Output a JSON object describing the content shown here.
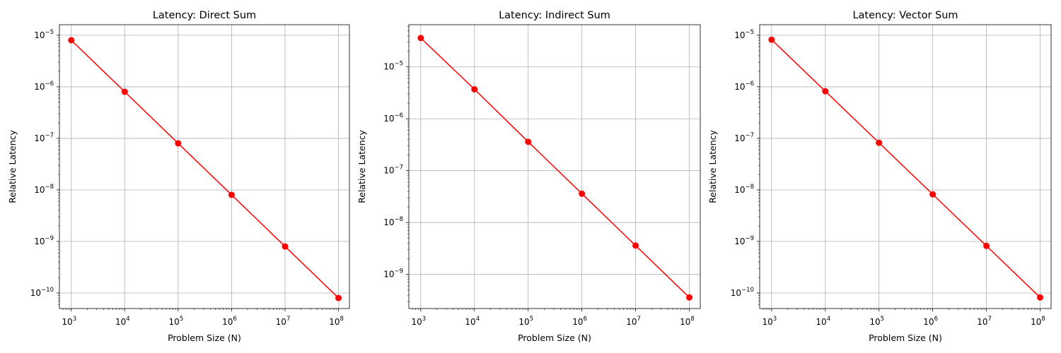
{
  "chart_data": [
    {
      "type": "line",
      "title": "Latency: Direct Sum",
      "xlabel": "Problem Size (N)",
      "ylabel": "Relative Latency",
      "x_scale": "log",
      "y_scale": "log",
      "grid": true,
      "xlim": [
        600,
        160000000
      ],
      "ylim": [
        5e-11,
        1.6e-05
      ],
      "x_ticks": [
        1000,
        10000,
        100000,
        1000000,
        10000000,
        100000000
      ],
      "y_ticks": [
        1e-10,
        1e-09,
        1e-08,
        1e-07,
        1e-06,
        1e-05
      ],
      "series": [
        {
          "color": "#ff0000",
          "marker": "circle",
          "x": [
            1000,
            10000,
            100000,
            1000000,
            10000000,
            100000000
          ],
          "y": [
            8e-06,
            8e-07,
            8e-08,
            8e-09,
            8e-10,
            8e-11
          ]
        }
      ]
    },
    {
      "type": "line",
      "title": "Latency: Indirect Sum",
      "xlabel": "Problem Size (N)",
      "ylabel": "Relative Latency",
      "x_scale": "log",
      "y_scale": "log",
      "grid": true,
      "xlim": [
        600,
        160000000
      ],
      "ylim": [
        2.2e-10,
        6.5e-05
      ],
      "x_ticks": [
        1000,
        10000,
        100000,
        1000000,
        10000000,
        100000000
      ],
      "y_ticks": [
        1e-09,
        1e-08,
        1e-07,
        1e-06,
        1e-05
      ],
      "series": [
        {
          "color": "#ff0000",
          "marker": "circle",
          "x": [
            1000,
            10000,
            100000,
            1000000,
            10000000,
            100000000
          ],
          "y": [
            3.6e-05,
            3.7e-06,
            3.6e-07,
            3.6e-08,
            3.6e-09,
            3.6e-10
          ]
        }
      ]
    },
    {
      "type": "line",
      "title": "Latency: Vector Sum",
      "xlabel": "Problem Size (N)",
      "ylabel": "Relative Latency",
      "x_scale": "log",
      "y_scale": "log",
      "grid": true,
      "xlim": [
        600,
        160000000
      ],
      "ylim": [
        5e-11,
        1.6e-05
      ],
      "x_ticks": [
        1000,
        10000,
        100000,
        1000000,
        10000000,
        100000000
      ],
      "y_ticks": [
        1e-10,
        1e-09,
        1e-08,
        1e-07,
        1e-06,
        1e-05
      ],
      "series": [
        {
          "color": "#ff0000",
          "marker": "circle",
          "x": [
            1000,
            10000,
            100000,
            1000000,
            10000000,
            100000000
          ],
          "y": [
            8.2e-06,
            8.2e-07,
            8.2e-08,
            8.2e-09,
            8.2e-10,
            8.2e-11
          ]
        }
      ]
    }
  ]
}
